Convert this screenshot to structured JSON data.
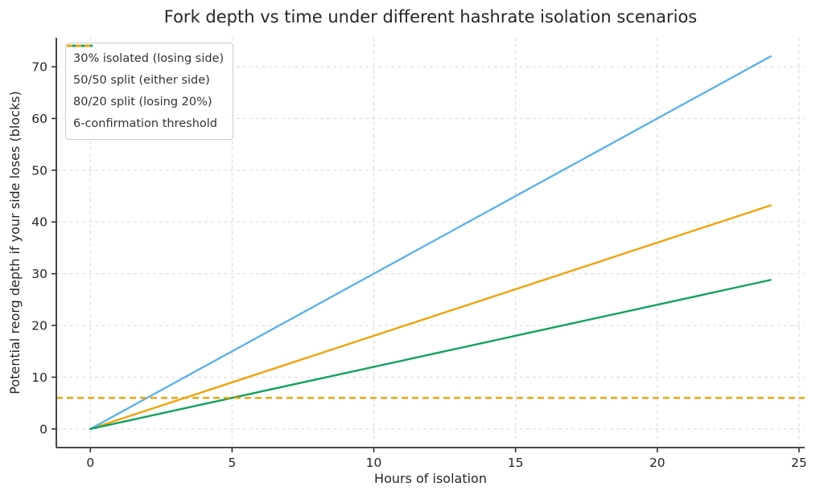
{
  "chart_data": {
    "type": "line",
    "title": "Fork depth vs time under different hashrate isolation scenarios",
    "xlabel": "Hours of isolation",
    "ylabel": "Potential reorg depth if your side loses (blocks)",
    "xlim": [
      -1.2,
      25.2
    ],
    "ylim": [
      -3.6,
      75.6
    ],
    "xticks": [
      0,
      5,
      10,
      15,
      20,
      25
    ],
    "yticks": [
      0,
      10,
      20,
      30,
      40,
      50,
      60,
      70
    ],
    "grid": true,
    "grid_style": "dashed",
    "legend_position": "upper left",
    "series": [
      {
        "name": "30% isolated (losing side)",
        "color": "#F0A30A",
        "style": "solid",
        "x": [
          0,
          24
        ],
        "y": [
          0,
          43.2
        ]
      },
      {
        "name": "50/50 split (either side)",
        "color": "#5EB3E8",
        "style": "solid",
        "x": [
          0,
          24
        ],
        "y": [
          0,
          72
        ]
      },
      {
        "name": "80/20 split (losing 20%)",
        "color": "#12A15F",
        "style": "solid",
        "x": [
          0,
          24
        ],
        "y": [
          0,
          28.8
        ]
      },
      {
        "name": "6-confirmation threshold",
        "color": "#F0A30A",
        "style": "dashed",
        "x": [
          -1.2,
          25.2
        ],
        "y": [
          6,
          6
        ]
      }
    ],
    "threshold_value": 6,
    "colors": {
      "grid": "#d7d7d7",
      "spine": "#333333",
      "tick_text": "#262626",
      "background": "#ffffff"
    }
  }
}
